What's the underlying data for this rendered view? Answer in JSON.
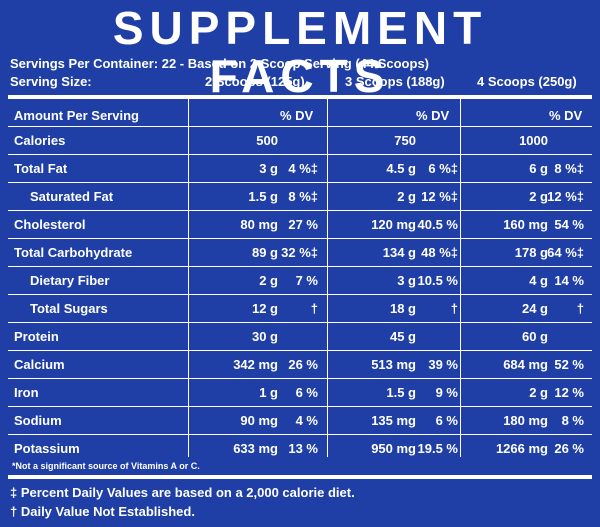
{
  "title": "SUPPLEMENT FACTS",
  "servings_per_container": "Servings Per Container: 22 - Based on 2 Scoop Serving (44 Scoops)",
  "serving_size_label": "Serving Size:",
  "serving_sizes": [
    "2 Scoops (125g)",
    "3 Scoops (188g)",
    "4 Scoops (250g)"
  ],
  "header": {
    "amount": "Amount Per Serving",
    "dv": "% DV"
  },
  "rows": [
    {
      "label": "Calories",
      "v": [
        "500",
        "750",
        "1000"
      ],
      "d": [
        "",
        "",
        ""
      ]
    },
    {
      "label": "Total Fat",
      "v": [
        "3 g",
        "4.5 g",
        "6 g"
      ],
      "d": [
        "4 %‡",
        "6 %‡",
        "8 %‡"
      ]
    },
    {
      "label": "Saturated Fat",
      "indent": true,
      "v": [
        "1.5 g",
        "2 g",
        "2 g"
      ],
      "d": [
        "8 %‡",
        "12 %‡",
        "12 %‡"
      ]
    },
    {
      "label": "Cholesterol",
      "v": [
        "80 mg",
        "120 mg",
        "160 mg"
      ],
      "d": [
        "27 %",
        "40.5 %",
        "54 %"
      ]
    },
    {
      "label": "Total Carbohydrate",
      "v": [
        "89 g",
        "134 g",
        "178 g"
      ],
      "d": [
        "32 %‡",
        "48 %‡",
        "64 %‡"
      ]
    },
    {
      "label": "Dietary Fiber",
      "indent": true,
      "v": [
        "2 g",
        "3 g",
        "4 g"
      ],
      "d": [
        "7 %",
        "10.5 %",
        "14 %"
      ]
    },
    {
      "label": "Total Sugars",
      "indent": true,
      "v": [
        "12 g",
        "18 g",
        "24 g"
      ],
      "d": [
        "†",
        "†",
        "†"
      ]
    },
    {
      "label": "Protein",
      "v": [
        "30 g",
        "45 g",
        "60 g"
      ],
      "d": [
        "",
        "",
        ""
      ]
    },
    {
      "label": "Calcium",
      "v": [
        "342 mg",
        "513 mg",
        "684 mg"
      ],
      "d": [
        "26 %",
        "39 %",
        "52 %"
      ]
    },
    {
      "label": "Iron",
      "v": [
        "1 g",
        "1.5 g",
        "2 g"
      ],
      "d": [
        "6 %",
        "9 %",
        "12 %"
      ]
    },
    {
      "label": "Sodium",
      "v": [
        "90 mg",
        "135 mg",
        "180 mg"
      ],
      "d": [
        "4 %",
        "6 %",
        "8 %"
      ]
    },
    {
      "label": "Potassium",
      "v": [
        "633 mg",
        "950 mg",
        "1266 mg"
      ],
      "d": [
        "13 %",
        "19.5 %",
        "26 %"
      ]
    }
  ],
  "not_significant": "*Not a significant source of Vitamins A or C.",
  "footnotes": [
    "‡ Percent Daily Values are based on a 2,000 calorie diet.",
    "† Daily Value Not Established."
  ]
}
